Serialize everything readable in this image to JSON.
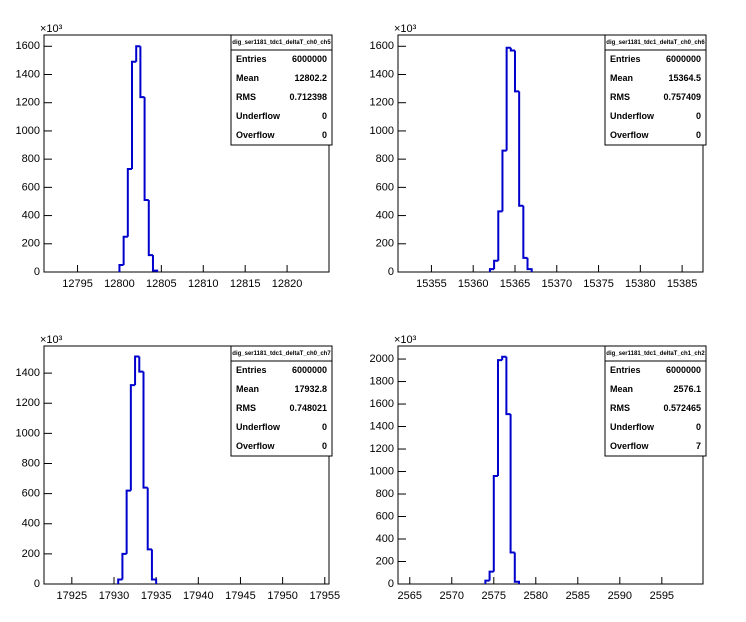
{
  "chart_data": [
    {
      "type": "histogram",
      "color": "#0000cc",
      "bins": [
        12800.0,
        12800.5,
        12801.0,
        12801.5,
        12802.0,
        12802.5,
        12803.0,
        12803.5,
        12804.0,
        12804.5
      ],
      "counts": [
        50,
        250,
        730,
        1490,
        1600,
        1240,
        510,
        120,
        10
      ],
      "xlim": [
        12791,
        12825
      ],
      "xticks": [
        12795,
        12800,
        12805,
        12810,
        12815,
        12820
      ],
      "ylim": [
        0,
        1680
      ],
      "yticks": [
        0,
        200,
        400,
        600,
        800,
        1000,
        1200,
        1400,
        1600
      ],
      "y_exponent_label": "×10³",
      "stats": {
        "title": "dig_ser1181_tdc1_deltaT_ch0_ch5",
        "rows": [
          {
            "label": "Entries",
            "value": 6000000
          },
          {
            "label": "Mean",
            "value": 12802.2
          },
          {
            "label": "RMS",
            "value": 0.712398
          },
          {
            "label": "Underflow",
            "value": 0
          },
          {
            "label": "Overflow",
            "value": 0
          }
        ]
      }
    },
    {
      "type": "histogram",
      "color": "#0000cc",
      "bins": [
        15362.0,
        15362.5,
        15363.0,
        15363.5,
        15364.0,
        15364.5,
        15365.0,
        15365.5,
        15366.0,
        15366.5,
        15367.0
      ],
      "counts": [
        20,
        80,
        430,
        860,
        1590,
        1570,
        1280,
        470,
        100,
        20
      ],
      "xlim": [
        15351,
        15387.5
      ],
      "xticks": [
        15355,
        15360,
        15365,
        15370,
        15375,
        15380,
        15385
      ],
      "ylim": [
        0,
        1680
      ],
      "yticks": [
        0,
        200,
        400,
        600,
        800,
        1000,
        1200,
        1400,
        1600
      ],
      "y_exponent_label": "×10³",
      "stats": {
        "title": "dig_ser1181_tdc1_deltaT_ch0_ch6",
        "rows": [
          {
            "label": "Entries",
            "value": 6000000
          },
          {
            "label": "Mean",
            "value": 15364.5
          },
          {
            "label": "RMS",
            "value": 0.757409
          },
          {
            "label": "Underflow",
            "value": 0
          },
          {
            "label": "Overflow",
            "value": 0
          }
        ]
      }
    },
    {
      "type": "histogram",
      "color": "#0000cc",
      "bins": [
        17930.5,
        17931.0,
        17931.5,
        17932.0,
        17932.5,
        17933.0,
        17933.5,
        17934.0,
        17934.5,
        17935.0
      ],
      "counts": [
        30,
        200,
        620,
        1320,
        1510,
        1410,
        640,
        230,
        30
      ],
      "xlim": [
        17921.7,
        17955.5
      ],
      "xticks": [
        17925,
        17930,
        17935,
        17940,
        17945,
        17950,
        17955
      ],
      "ylim": [
        0,
        1580
      ],
      "yticks": [
        0,
        200,
        400,
        600,
        800,
        1000,
        1200,
        1400
      ],
      "y_exponent_label": "×10³",
      "stats": {
        "title": "dig_ser1181_tdc1_deltaT_ch0_ch7",
        "rows": [
          {
            "label": "Entries",
            "value": 6000000
          },
          {
            "label": "Mean",
            "value": 17932.8
          },
          {
            "label": "RMS",
            "value": 0.748021
          },
          {
            "label": "Underflow",
            "value": 0
          },
          {
            "label": "Overflow",
            "value": 0
          }
        ]
      }
    },
    {
      "type": "histogram",
      "color": "#0000cc",
      "bins": [
        2574.0,
        2574.5,
        2575.0,
        2575.5,
        2576.0,
        2576.5,
        2577.0,
        2577.5,
        2578.0
      ],
      "counts": [
        30,
        110,
        960,
        1990,
        2020,
        1510,
        280,
        20
      ],
      "xlim": [
        2563.6,
        2599.9
      ],
      "xticks": [
        2565,
        2570,
        2575,
        2580,
        2585,
        2590,
        2595
      ],
      "ylim": [
        0,
        2116
      ],
      "yticks": [
        0,
        200,
        400,
        600,
        800,
        1000,
        1200,
        1400,
        1600,
        1800,
        2000
      ],
      "y_exponent_label": "×10³",
      "stats": {
        "title": "dig_ser1181_tdc1_deltaT_ch1_ch2",
        "rows": [
          {
            "label": "Entries",
            "value": 6000000
          },
          {
            "label": "Mean",
            "value": 2576.1
          },
          {
            "label": "RMS",
            "value": 0.572465
          },
          {
            "label": "Underflow",
            "value": 0
          },
          {
            "label": "Overflow",
            "value": 7
          }
        ]
      }
    }
  ]
}
